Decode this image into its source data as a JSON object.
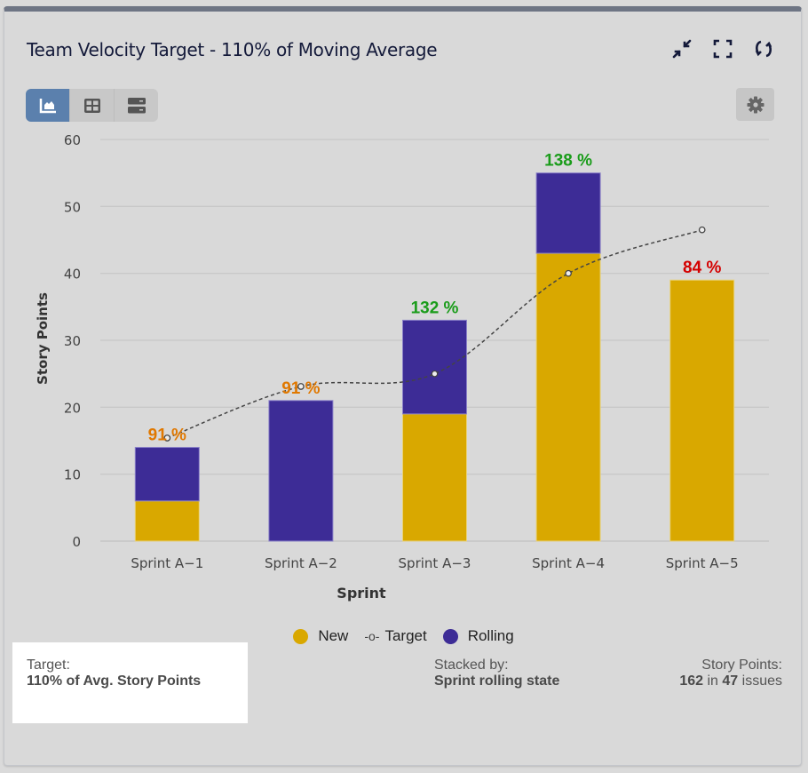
{
  "header": {
    "title": "Team Velocity Target - 110% of Moving Average",
    "icons": [
      "collapse-icon",
      "fullscreen-icon",
      "refresh-icon"
    ]
  },
  "view_toggle": {
    "options": [
      "chart-view",
      "table-view",
      "list-view"
    ],
    "active": "chart-view"
  },
  "settings_icon": "gear-icon",
  "colors": {
    "new": "#d9a800",
    "rolling": "#3d2c96",
    "target": "#444444",
    "pct_low": "#e07800",
    "pct_high": "#1a9c1a",
    "pct_bad": "#d40000",
    "accent": "#5b80ad"
  },
  "chart_data": {
    "type": "bar",
    "stacked": true,
    "title": "Team Velocity Target - 110% of Moving Average",
    "xlabel": "Sprint",
    "ylabel": "Story Points",
    "ylim": [
      0,
      60
    ],
    "yticks": [
      0,
      10,
      20,
      30,
      40,
      50,
      60
    ],
    "grid": true,
    "legend_position": "bottom-center",
    "categories": [
      "Sprint A−1",
      "Sprint A−2",
      "Sprint A−3",
      "Sprint A−4",
      "Sprint A−5"
    ],
    "series": [
      {
        "name": "New",
        "type": "bar",
        "values": [
          6,
          0,
          19,
          43,
          39
        ]
      },
      {
        "name": "Rolling",
        "type": "bar",
        "values": [
          8,
          21,
          14,
          12,
          0
        ]
      },
      {
        "name": "Target",
        "type": "line",
        "style": "dashed-spline",
        "values": [
          15.4,
          23.1,
          25.0,
          40.0,
          46.5
        ]
      }
    ],
    "data_labels": [
      "91 %",
      "91 %",
      "132 %",
      "138 %",
      "84 %"
    ],
    "data_label_status": [
      "low",
      "low",
      "high",
      "high",
      "bad"
    ]
  },
  "legend": [
    {
      "name": "New",
      "marker": "dot"
    },
    {
      "name": "Target",
      "marker": "-o-"
    },
    {
      "name": "Rolling",
      "marker": "dot"
    }
  ],
  "footer": {
    "target_label": "Target:",
    "target_value": "110% of Avg. Story Points",
    "stacked_label": "Stacked by:",
    "stacked_value": "Sprint rolling state",
    "sp_label": "Story Points:",
    "sp_total": "162",
    "sp_in": "in",
    "sp_issues": "47",
    "sp_suffix": "issues"
  }
}
